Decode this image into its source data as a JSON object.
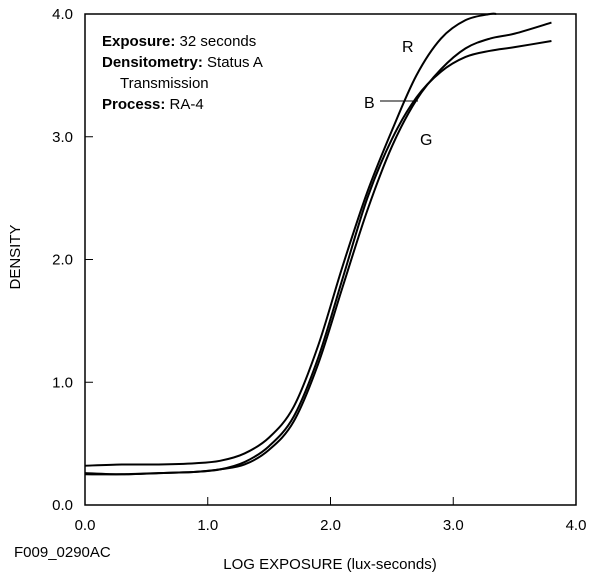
{
  "chart_data": {
    "type": "line",
    "xlabel": "LOG EXPOSURE (lux-seconds)",
    "ylabel": "DENSITY",
    "xlim": [
      0.0,
      4.0
    ],
    "ylim": [
      0.0,
      4.0
    ],
    "x_ticks": [
      "0.0",
      "1.0",
      "2.0",
      "3.0",
      "4.0"
    ],
    "y_ticks": [
      "0.0",
      "1.0",
      "2.0",
      "3.0",
      "4.0"
    ],
    "grid": false,
    "figure_id": "F009_0290AC",
    "notes": [
      {
        "key": "Exposure:",
        "value": " 32 seconds"
      },
      {
        "key": "Densitometry:",
        "value": " Status A"
      },
      {
        "key": "",
        "value": "Transmission"
      },
      {
        "key": "Process:",
        "value": " RA-4"
      }
    ],
    "series": [
      {
        "name": "R",
        "color": "#000000",
        "points": [
          [
            0.0,
            0.32
          ],
          [
            0.3,
            0.33
          ],
          [
            0.6,
            0.33
          ],
          [
            0.9,
            0.34
          ],
          [
            1.1,
            0.36
          ],
          [
            1.3,
            0.42
          ],
          [
            1.5,
            0.55
          ],
          [
            1.7,
            0.8
          ],
          [
            1.9,
            1.3
          ],
          [
            2.1,
            1.95
          ],
          [
            2.3,
            2.55
          ],
          [
            2.5,
            3.05
          ],
          [
            2.7,
            3.5
          ],
          [
            2.9,
            3.8
          ],
          [
            3.1,
            3.95
          ],
          [
            3.3,
            4.0
          ],
          [
            3.35,
            4.0
          ]
        ]
      },
      {
        "name": "B",
        "color": "#000000",
        "points": [
          [
            0.0,
            0.26
          ],
          [
            0.3,
            0.25
          ],
          [
            0.6,
            0.26
          ],
          [
            0.9,
            0.27
          ],
          [
            1.1,
            0.29
          ],
          [
            1.3,
            0.35
          ],
          [
            1.5,
            0.48
          ],
          [
            1.7,
            0.72
          ],
          [
            1.9,
            1.2
          ],
          [
            2.1,
            1.85
          ],
          [
            2.3,
            2.5
          ],
          [
            2.5,
            2.98
          ],
          [
            2.7,
            3.32
          ],
          [
            2.9,
            3.53
          ],
          [
            3.1,
            3.65
          ],
          [
            3.3,
            3.7
          ],
          [
            3.5,
            3.73
          ],
          [
            3.8,
            3.78
          ]
        ]
      },
      {
        "name": "G",
        "color": "#000000",
        "points": [
          [
            0.0,
            0.25
          ],
          [
            0.3,
            0.25
          ],
          [
            0.6,
            0.26
          ],
          [
            0.9,
            0.27
          ],
          [
            1.1,
            0.29
          ],
          [
            1.3,
            0.33
          ],
          [
            1.5,
            0.45
          ],
          [
            1.7,
            0.68
          ],
          [
            1.9,
            1.15
          ],
          [
            2.1,
            1.78
          ],
          [
            2.3,
            2.4
          ],
          [
            2.5,
            2.92
          ],
          [
            2.7,
            3.3
          ],
          [
            2.9,
            3.55
          ],
          [
            3.1,
            3.72
          ],
          [
            3.3,
            3.8
          ],
          [
            3.5,
            3.84
          ],
          [
            3.8,
            3.93
          ]
        ]
      }
    ]
  }
}
